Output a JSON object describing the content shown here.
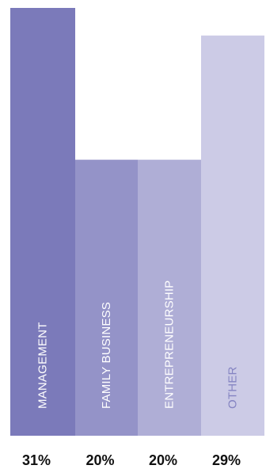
{
  "chart_data": {
    "type": "bar",
    "title": "",
    "xlabel": "",
    "ylabel": "",
    "ylim": [
      0,
      31
    ],
    "grid": false,
    "legend": "none",
    "categories": [
      "MANAGEMENT",
      "FAMILY BUSINESS",
      "ENTREPRENEURSHIP",
      "OTHER"
    ],
    "values": [
      31,
      20,
      20,
      29
    ],
    "value_labels": [
      "31%",
      "20%",
      "20%",
      "29%"
    ],
    "colors": [
      "#7b7aba",
      "#9493c8",
      "#afaed6",
      "#cccbe6"
    ],
    "label_colors": [
      "#ffffff",
      "#ffffff",
      "#ffffff",
      "#8584c2"
    ]
  }
}
